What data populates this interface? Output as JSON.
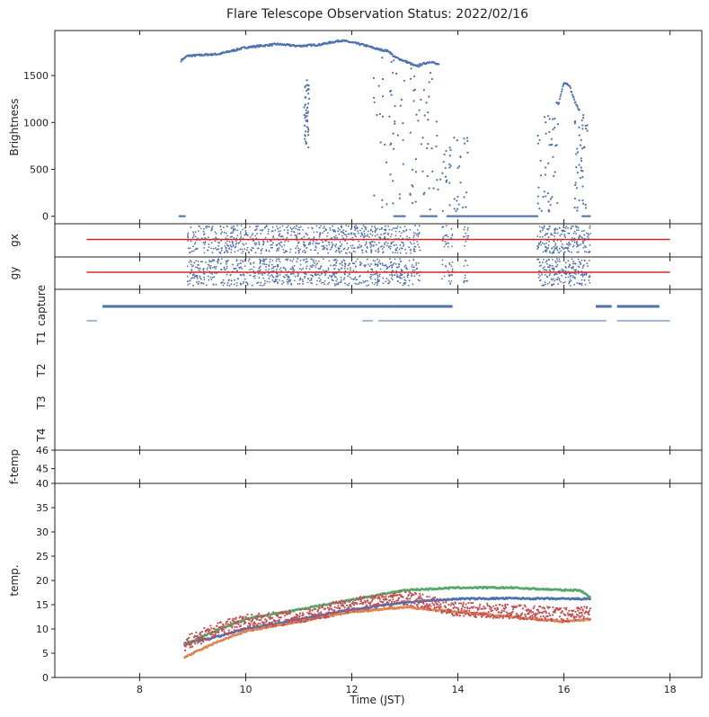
{
  "chart_data": {
    "type": "scatter",
    "title": "Flare Telescope Observation Status: 2022/02/16",
    "xlabel": "Time (JST)",
    "xlim": [
      6.4,
      18.6
    ],
    "x_ticks": [
      "8",
      "10",
      "12",
      "14",
      "16",
      "18"
    ],
    "panels": [
      {
        "id": "brightness",
        "ylabel": "Brightness",
        "ylim": [
          -80,
          1980
        ],
        "y_ticks": [
          "0",
          "500",
          "1000",
          "1500"
        ],
        "series_color": "#4c72b0",
        "envelope": [
          [
            8.78,
            1660
          ],
          [
            8.9,
            1710
          ],
          [
            9.5,
            1730
          ],
          [
            10.0,
            1800
          ],
          [
            10.6,
            1835
          ],
          [
            11.0,
            1815
          ],
          [
            11.4,
            1830
          ],
          [
            11.8,
            1875
          ],
          [
            12.2,
            1830
          ],
          [
            12.5,
            1780
          ],
          [
            12.7,
            1760
          ],
          [
            12.8,
            1700
          ],
          [
            13.1,
            1630
          ],
          [
            13.2,
            1600
          ],
          [
            13.5,
            1650
          ],
          [
            13.6,
            1620
          ],
          [
            15.9,
            1200
          ],
          [
            16.0,
            1430
          ],
          [
            16.1,
            1400
          ],
          [
            16.2,
            1230
          ],
          [
            16.3,
            1120
          ]
        ],
        "segments": [
          [
            8.75,
            8.85,
            0
          ],
          [
            12.8,
            13.0,
            0
          ],
          [
            13.3,
            13.6,
            0
          ],
          [
            13.8,
            15.5,
            0
          ],
          [
            16.35,
            16.5,
            0
          ]
        ]
      },
      {
        "id": "gx",
        "ylabel": "gx",
        "ref_line": {
          "from": 7.0,
          "to": 18.0,
          "color": "#d62728"
        },
        "series_color": "#4c72b0"
      },
      {
        "id": "gy",
        "ylabel": "gy",
        "ref_line": {
          "from": 7.0,
          "to": 18.0,
          "color": "#d62728"
        },
        "series_color": "#4c72b0"
      },
      {
        "id": "capture",
        "category_labels": [
          "capture",
          "T1",
          "T2",
          "T3",
          "T4"
        ],
        "capture_bars": [
          [
            7.3,
            12.8
          ],
          [
            12.8,
            13.9
          ],
          [
            16.6,
            16.9
          ],
          [
            17.0,
            17.8
          ]
        ],
        "t1_bars": [
          [
            7.0,
            7.2
          ],
          [
            12.2,
            12.4
          ],
          [
            12.5,
            16.8
          ],
          [
            17.0,
            18.0
          ]
        ],
        "series_color": "#4c72b0"
      },
      {
        "id": "f-temp",
        "ylabel": "f-temp",
        "ylim": [
          44,
          46
        ],
        "y_ticks": [
          "45",
          "46"
        ],
        "values": []
      },
      {
        "id": "temp",
        "ylabel": "temp.",
        "ylim": [
          0,
          40
        ],
        "y_ticks": [
          "0",
          "5",
          "10",
          "15",
          "20",
          "25",
          "30",
          "35",
          "40"
        ],
        "series": [
          {
            "color": "#4c72b0",
            "x": [
              8.85,
              9.5,
              10,
              11,
              12,
              13,
              14,
              15,
              16,
              16.5
            ],
            "values": [
              7.0,
              8.5,
              10.0,
              12.0,
              14.0,
              15.5,
              16.2,
              16.3,
              16.2,
              16.2
            ]
          },
          {
            "color": "#dd8452",
            "x": [
              8.85,
              9.5,
              10,
              11,
              12,
              13,
              14,
              15,
              16,
              16.5
            ],
            "values": [
              4.2,
              7.5,
              9.5,
              11.5,
              13.5,
              14.5,
              13.5,
              12.5,
              11.5,
              12.0
            ]
          },
          {
            "color": "#55a868",
            "x": [
              8.85,
              9.5,
              10,
              11,
              12,
              13,
              14,
              15,
              16,
              16.3,
              16.5
            ],
            "values": [
              6.8,
              10.0,
              12.0,
              14.0,
              16.0,
              18.0,
              18.5,
              18.5,
              18.0,
              18.0,
              16.5
            ]
          },
          {
            "color": "#c44e52",
            "x": [
              8.85,
              9.5,
              10,
              11,
              12,
              13,
              14,
              15,
              16,
              16.5
            ],
            "values": [
              7.0,
              10.0,
              11.5,
              12.5,
              15.0,
              16.5,
              14.0,
              13.5,
              13.0,
              13.5
            ]
          }
        ]
      }
    ]
  }
}
